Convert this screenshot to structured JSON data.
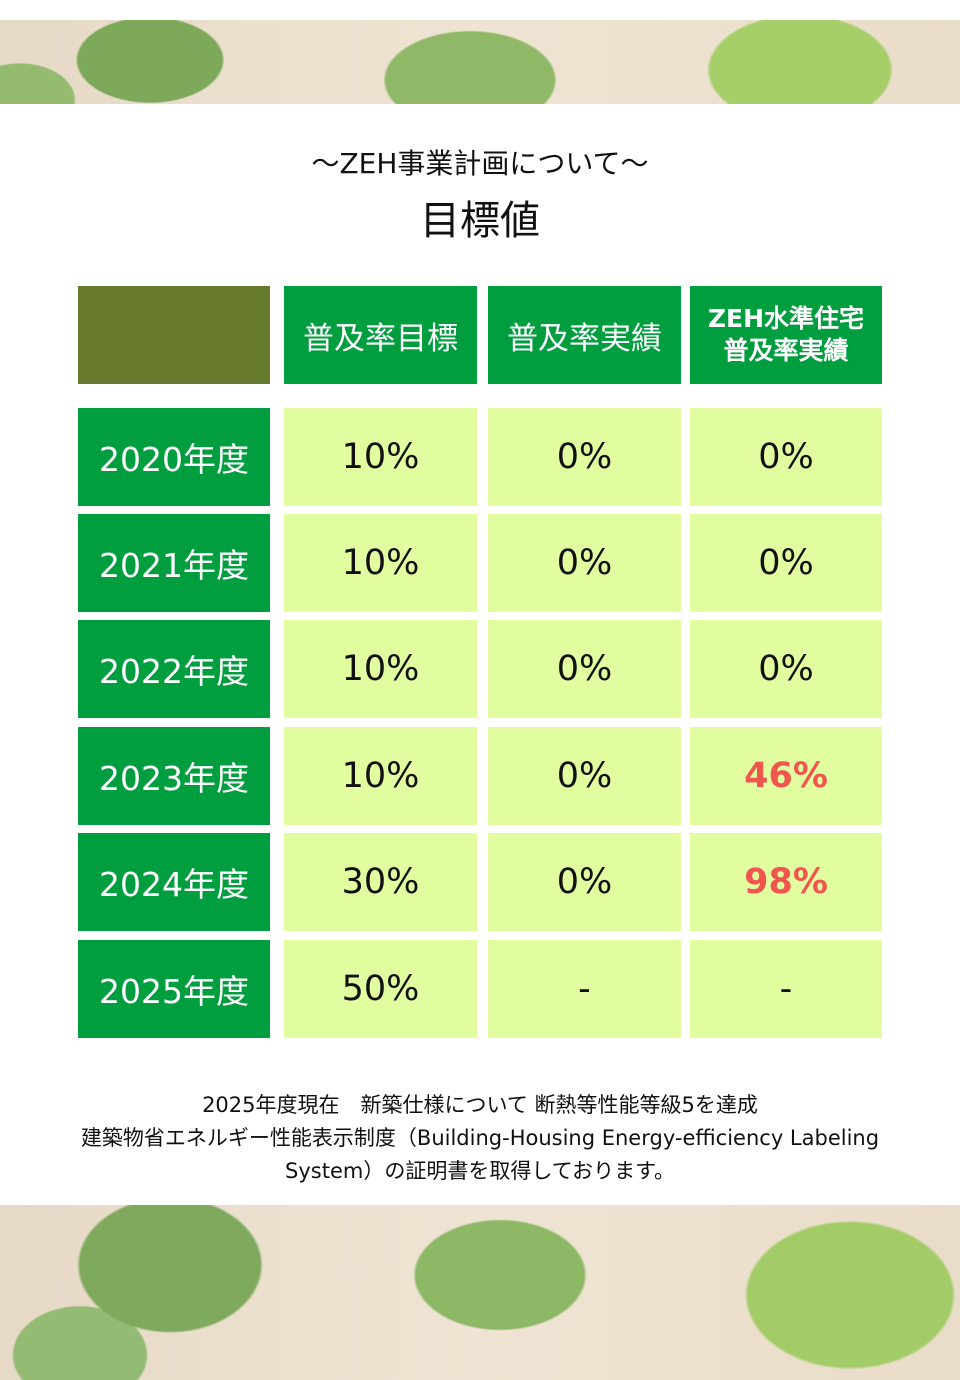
{
  "subtitle": "～ZEH事業計画について～",
  "title": "目標値",
  "table": {
    "headers": [
      "普及率目標",
      "普及率実績",
      "ZEH水準住宅",
      "普及率実績"
    ],
    "rows": [
      {
        "year": "2020年度",
        "target": "10%",
        "actual": "0%",
        "zeh": "0%",
        "highlight": false
      },
      {
        "year": "2021年度",
        "target": "10%",
        "actual": "0%",
        "zeh": "0%",
        "highlight": false
      },
      {
        "year": "2022年度",
        "target": "10%",
        "actual": "0%",
        "zeh": "0%",
        "highlight": false
      },
      {
        "year": "2023年度",
        "target": "10%",
        "actual": "0%",
        "zeh": "46%",
        "highlight": true
      },
      {
        "year": "2024年度",
        "target": "30%",
        "actual": "0%",
        "zeh": "98%",
        "highlight": true
      },
      {
        "year": "2025年度",
        "target": "50%",
        "actual": "-",
        "zeh": "-",
        "highlight": false
      }
    ]
  },
  "note": [
    "2025年度現在　新築仕様について 断熱等性能等級5を達成",
    "建築物省エネルギー性能表示制度（Building-Housing Energy-efficiency Labeling",
    "System）の証明書を取得しております。"
  ],
  "colors": {
    "green": "#009e3f",
    "olive": "#687a2e",
    "cell": "#e2fca0",
    "highlight": "#f0554e"
  }
}
